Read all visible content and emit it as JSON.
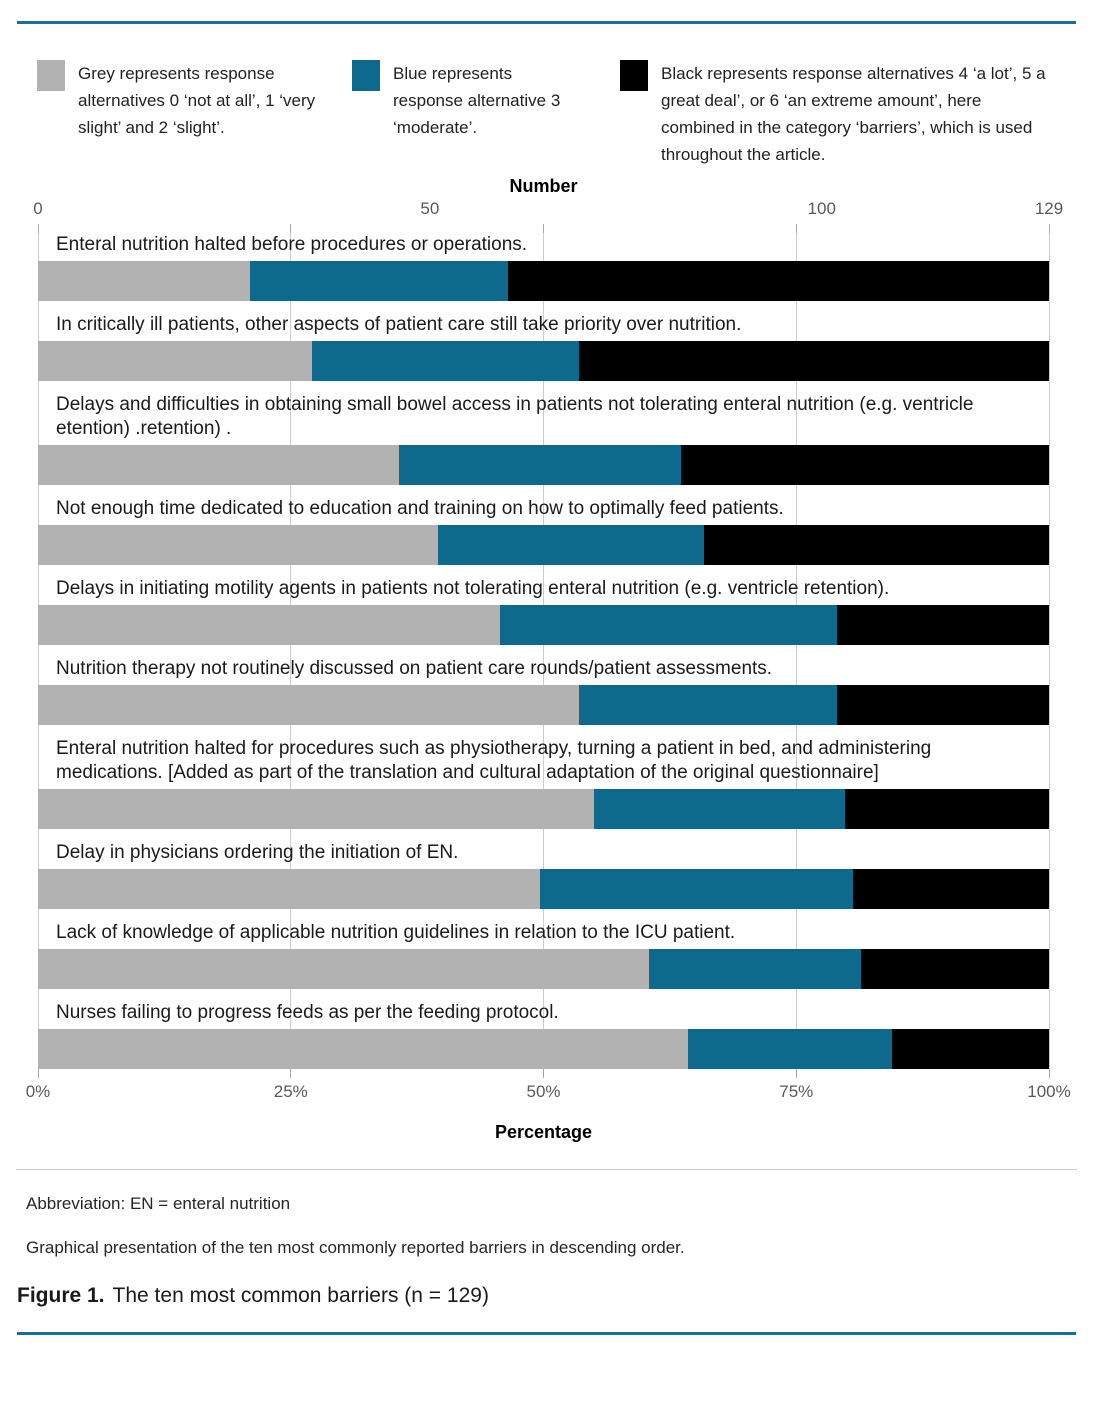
{
  "page": {
    "rule_color": "#15719b",
    "divider_color": "#c6c6c6",
    "background": "#ffffff"
  },
  "legend": {
    "items": [
      {
        "key": "grey",
        "color": "#b2b2b2",
        "text": "Grey represents response alternatives 0 ‘not at all’, 1 ‘very slight’ and 2 ‘slight’."
      },
      {
        "key": "blue",
        "color": "#0e6a8c",
        "text": "Blue represents response alternative 3 ‘moderate’."
      },
      {
        "key": "black",
        "color": "#000000",
        "text": "Black represents response alternatives 4 ‘a lot’, 5 a great deal’, or 6 ‘an extreme amount’, here combined in the category ‘barriers’, which is used throughout the article."
      }
    ]
  },
  "chart_data": {
    "type": "bar",
    "orientation": "horizontal",
    "stacked": true,
    "n_total": 129,
    "top_axis": {
      "title": "Number",
      "range": [
        0,
        129
      ],
      "ticks": [
        {
          "label": "0",
          "value": 0
        },
        {
          "label": "50",
          "value": 50
        },
        {
          "label": "100",
          "value": 100
        },
        {
          "label": "129",
          "value": 129
        }
      ]
    },
    "bottom_axis": {
      "title": "Percentage",
      "range": [
        0,
        100
      ],
      "ticks": [
        {
          "label": "0%",
          "value": 0
        },
        {
          "label": "25%",
          "value": 25
        },
        {
          "label": "50%",
          "value": 50
        },
        {
          "label": "75%",
          "value": 75
        },
        {
          "label": "100%",
          "value": 100
        }
      ]
    },
    "grid": true,
    "categories": [
      "Enteral nutrition halted before procedures or operations.",
      "In critically ill patients, other aspects of patient care still take priority over nutrition.",
      "Delays and difficulties in obtaining small bowel access in patients not tolerating enteral nutrition (e.g. ventricle etention) .retention) .",
      "Not enough time dedicated to education and training on how to optimally feed patients.",
      "Delays in initiating motility agents in patients not tolerating enteral nutrition (e.g. ventricle retention).",
      "Nutrition therapy not routinely discussed on patient care rounds/patient assessments.",
      "Enteral nutrition halted for procedures such as physiotherapy, turning a patient in bed, and administering medications. [Added as part of the translation and cultural adaptation of the original questionnaire]",
      "Delay in physicians ordering the initiation of EN.",
      "Lack of knowledge of applicable nutrition guidelines in relation to the ICU patient.",
      "Nurses failing to progress feeds as per the feeding protocol."
    ],
    "series": [
      {
        "key": "grey",
        "name": "Response alternatives 0–2 (not at all / very slight / slight)",
        "color": "#b2b2b2",
        "values": [
          27,
          35,
          46,
          51,
          59,
          69,
          71,
          64,
          78,
          83
        ]
      },
      {
        "key": "blue",
        "name": "Response alternative 3 (moderate)",
        "color": "#0e6a8c",
        "values": [
          33,
          34,
          36,
          34,
          43,
          33,
          32,
          40,
          27,
          26
        ]
      },
      {
        "key": "black",
        "name": "Response alternatives 4–6 (barriers)",
        "color": "#000000",
        "values": [
          69,
          60,
          47,
          44,
          27,
          27,
          26,
          25,
          24,
          20
        ]
      }
    ]
  },
  "footer": {
    "abbreviation": "Abbreviation: EN = enteral nutrition",
    "note": "Graphical presentation of the ten most commonly reported barriers in descending order.",
    "figure_label": "Figure 1.",
    "figure_title": "The ten most common barriers (n = 129)"
  }
}
